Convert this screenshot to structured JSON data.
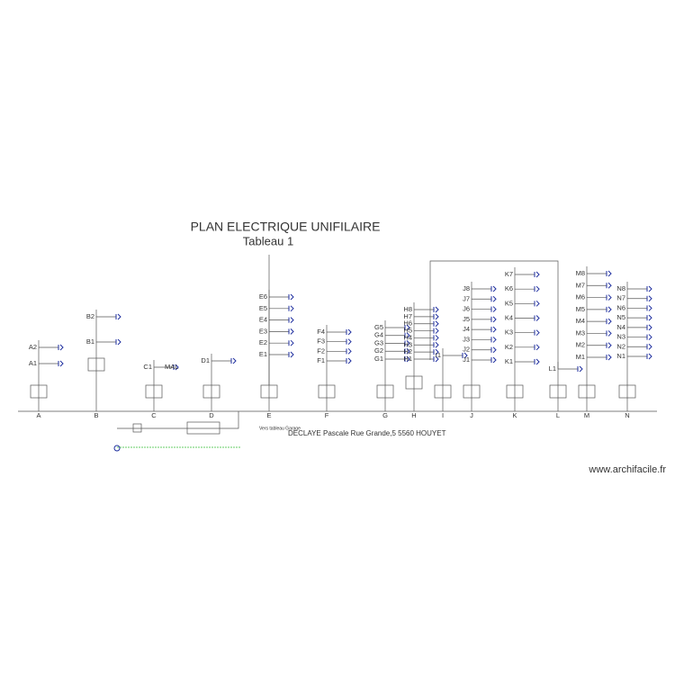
{
  "title": "PLAN ELECTRIQUE UNIFILAIRE",
  "subtitle": "Tableau 1",
  "columns": [
    {
      "letter": "A",
      "circuits": [
        "A2",
        "A1"
      ]
    },
    {
      "letter": "B",
      "circuits": [
        "B2",
        "B1"
      ]
    },
    {
      "letter": "C",
      "circuits": [
        "C1"
      ],
      "note": "MAL"
    },
    {
      "letter": "D",
      "circuits": [
        "D1"
      ]
    },
    {
      "letter": "E",
      "circuits": [
        "E6",
        "E5",
        "E4",
        "E3",
        "E2",
        "E1"
      ]
    },
    {
      "letter": "F",
      "circuits": [
        "F4",
        "F3",
        "F2",
        "F1"
      ]
    },
    {
      "letter": "G",
      "circuits": [
        "G5",
        "G4",
        "G3",
        "G2",
        "G1"
      ]
    },
    {
      "letter": "H",
      "circuits": [
        "H8",
        "H7",
        "H6",
        "H5",
        "H4",
        "H3",
        "H2",
        "H1"
      ]
    },
    {
      "letter": "I",
      "circuits": [
        "I1"
      ]
    },
    {
      "letter": "J",
      "circuits": [
        "J8",
        "J7",
        "J6",
        "J5",
        "J4",
        "J3",
        "J2",
        "J1"
      ]
    },
    {
      "letter": "K",
      "circuits": [
        "K7",
        "K6",
        "K5",
        "K4",
        "K3",
        "K2",
        "K1"
      ]
    },
    {
      "letter": "L",
      "circuits": [
        "L1"
      ]
    },
    {
      "letter": "M",
      "circuits": [
        "M8",
        "M7",
        "M6",
        "M5",
        "M4",
        "M3",
        "M2",
        "M1"
      ]
    },
    {
      "letter": "N",
      "circuits": [
        "N8",
        "N7",
        "N6",
        "N5",
        "N4",
        "N3",
        "N2",
        "N1"
      ]
    }
  ],
  "garage_note": "Vers tableau Garage",
  "footer": "DECLAYE Pascale  Rue Grande,5 5560 HOUYET",
  "watermark": "www.archifacile.fr"
}
